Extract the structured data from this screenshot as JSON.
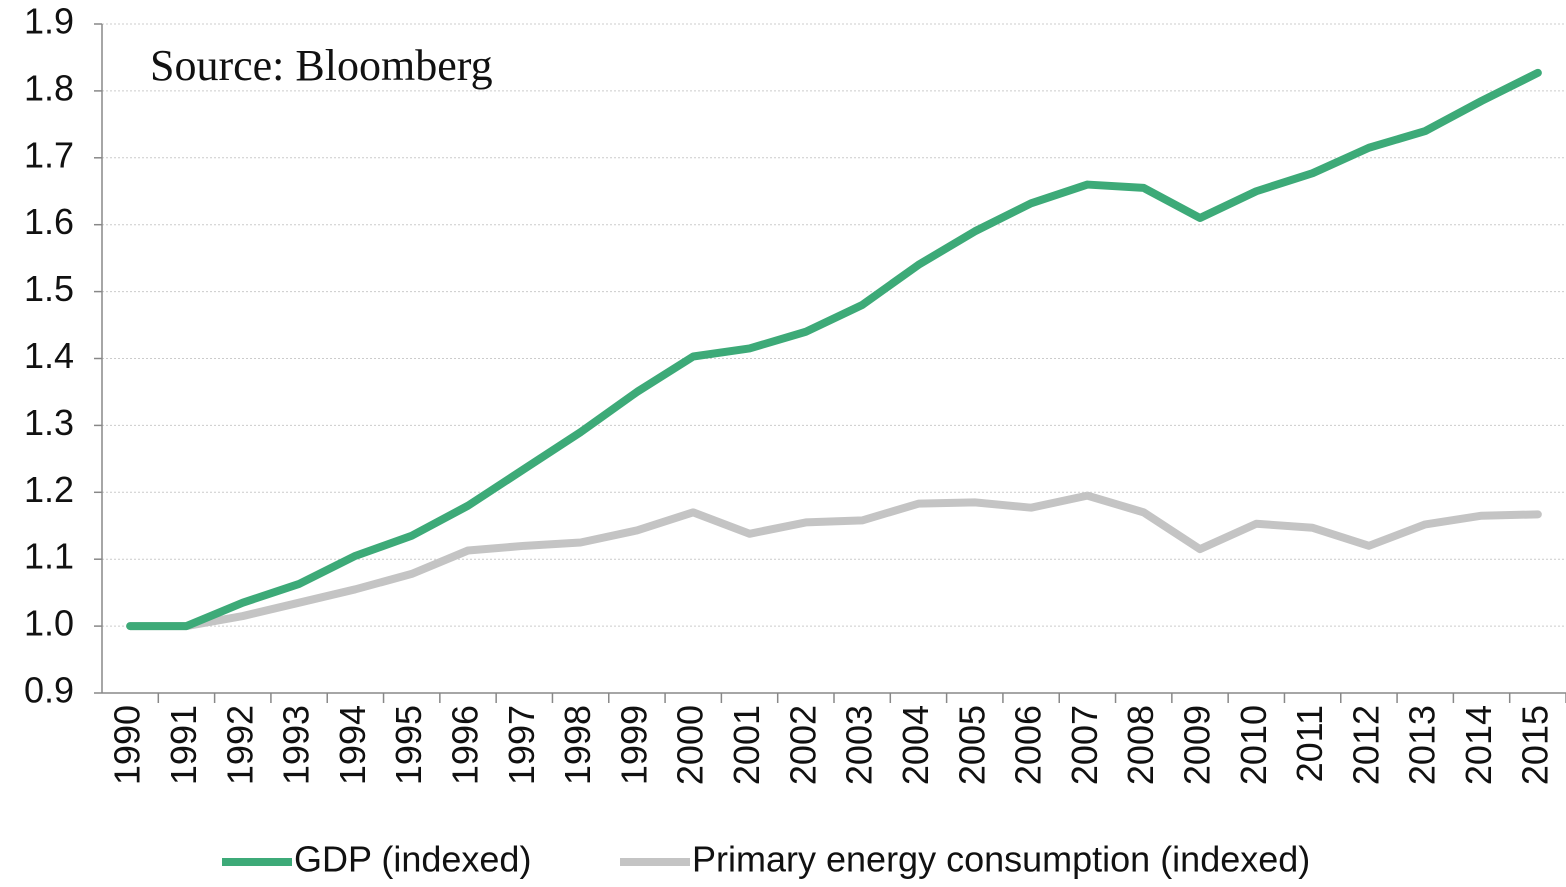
{
  "chart_data": {
    "type": "line",
    "annotation": "Source: Bloomberg",
    "categories": [
      "1990",
      "1991",
      "1992",
      "1993",
      "1994",
      "1995",
      "1996",
      "1997",
      "1998",
      "1999",
      "2000",
      "2001",
      "2002",
      "2003",
      "2004",
      "2005",
      "2006",
      "2007",
      "2008",
      "2009",
      "2010",
      "2011",
      "2012",
      "2013",
      "2014",
      "2015"
    ],
    "series": [
      {
        "name": "GDP (indexed)",
        "color": "#3daa78",
        "values": [
          1.0,
          1.0,
          1.035,
          1.063,
          1.105,
          1.135,
          1.18,
          1.235,
          1.29,
          1.35,
          1.403,
          1.415,
          1.44,
          1.48,
          1.54,
          1.59,
          1.632,
          1.66,
          1.655,
          1.61,
          1.65,
          1.677,
          1.715,
          1.74,
          1.785,
          1.827
        ]
      },
      {
        "name": "Primary energy consumption (indexed)",
        "color": "#c4c4c4",
        "values": [
          1.0,
          1.0,
          1.015,
          1.035,
          1.055,
          1.078,
          1.113,
          1.12,
          1.125,
          1.143,
          1.17,
          1.138,
          1.155,
          1.158,
          1.183,
          1.185,
          1.177,
          1.195,
          1.17,
          1.115,
          1.153,
          1.147,
          1.12,
          1.152,
          1.165,
          1.167
        ]
      }
    ],
    "ylim": [
      0.9,
      1.9
    ],
    "yticks": [
      0.9,
      {
        "value": 1,
        "label": "1.0"
      },
      1.1,
      1.2,
      1.3,
      1.4,
      1.5,
      1.6,
      1.7,
      1.8,
      1.9
    ],
    "grid": true,
    "legend": "bottom"
  }
}
